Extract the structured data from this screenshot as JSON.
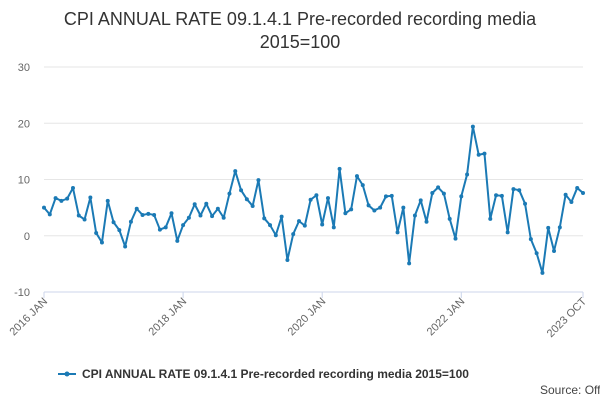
{
  "chart_data": {
    "type": "line",
    "title_lines": [
      "CPI ANNUAL RATE 09.1.4.1 Pre-recorded recording media",
      "2015=100"
    ],
    "xlabel": "",
    "ylabel": "",
    "ylim": [
      -10,
      30
    ],
    "yticks": [
      -10,
      0,
      10,
      20,
      30
    ],
    "grid": "horizontal",
    "legend_position": "bottom",
    "color": "#1b7ab5",
    "x_start": "2016 JAN",
    "x_end": "2023 OCT",
    "xtick_labels": [
      {
        "label": "2016 JAN",
        "index": 0
      },
      {
        "label": "2018 JAN",
        "index": 24
      },
      {
        "label": "2020 JAN",
        "index": 48
      },
      {
        "label": "2022 JAN",
        "index": 72
      },
      {
        "label": "2023 OCT",
        "index": 93
      }
    ],
    "series": [
      {
        "name": "CPI ANNUAL RATE 09.1.4.1 Pre-recorded recording media 2015=100",
        "values": [
          5.0,
          3.8,
          6.7,
          6.2,
          6.6,
          8.5,
          3.6,
          2.9,
          6.8,
          0.5,
          -1.2,
          6.2,
          2.4,
          1.0,
          -1.9,
          2.5,
          4.8,
          3.7,
          3.9,
          3.7,
          1.1,
          1.5,
          4.0,
          -0.9,
          1.9,
          3.2,
          5.6,
          3.6,
          5.7,
          3.5,
          4.8,
          3.2,
          7.5,
          11.5,
          8.1,
          6.5,
          5.3,
          9.9,
          3.1,
          1.9,
          0.1,
          3.4,
          -4.3,
          0.3,
          2.6,
          1.8,
          6.4,
          7.2,
          2.0,
          6.7,
          1.5,
          11.9,
          4.0,
          4.7,
          10.6,
          9.0,
          5.4,
          4.5,
          5.0,
          7.0,
          7.1,
          0.6,
          5.0,
          -4.9,
          3.6,
          6.3,
          2.5,
          7.6,
          8.6,
          7.5,
          3.0,
          -0.5,
          7.0,
          10.9,
          19.4,
          14.4,
          14.6,
          3.0,
          7.2,
          7.1,
          0.6,
          8.3,
          8.1,
          5.7,
          -0.6,
          -3.1,
          -6.6,
          1.4,
          -2.7,
          1.5,
          7.3,
          6.0,
          8.5,
          7.6
        ]
      }
    ],
    "credit": "Source: Office for National Statistics"
  }
}
